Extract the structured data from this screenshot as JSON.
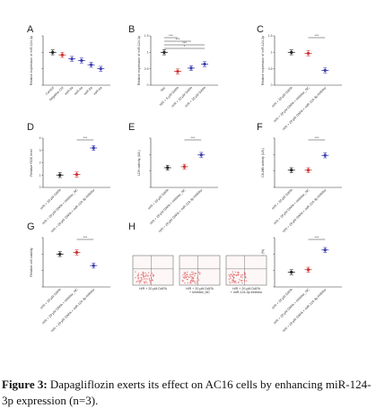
{
  "caption": {
    "label": "Figure 3:",
    "text": "Dapagliflozin exerts its effect on AC16 cells by enhancing miR-124-3p expression (n=3)."
  },
  "panel_g_legend": [
    "H/R + 20 μM DAPA",
    "H/R + 20 μM DAPA + Inhibitor_NC",
    "H/R + 20 μM DAPA + miR-124-3p inhibitor"
  ],
  "chart_data": [
    {
      "panel": "A",
      "type": "scatter",
      "ylabel": "Relative expression of miR-124-3p",
      "categories": [
        "Control",
        "Negative Ctrl",
        "miR-3a",
        "miR-4a",
        "miR-5a",
        "miR-6a"
      ],
      "values": [
        1.0,
        0.92,
        0.8,
        0.75,
        0.62,
        0.5
      ],
      "colors": [
        "#222222",
        "#d03030",
        "#3a3ab0",
        "#3a3ab0",
        "#3a3ab0",
        "#3a3ab0"
      ],
      "ylim": [
        0,
        1.5
      ]
    },
    {
      "panel": "B",
      "type": "scatter",
      "ylabel": "Relative expression of miR-124-3p",
      "categories": [
        "Nor",
        "H/R + 5 μM DAPA",
        "H/R + 10 μM DAPA",
        "H/R + 20 μM DAPA"
      ],
      "values": [
        1.0,
        0.42,
        0.52,
        0.64
      ],
      "colors": [
        "#222222",
        "#d03030",
        "#3a3ab0",
        "#3a3ab0"
      ],
      "ylim": [
        0,
        1.5
      ],
      "yticks": [
        0,
        0.5,
        1.0,
        1.5
      ],
      "significance": [
        "***",
        "***",
        "***",
        "*"
      ]
    },
    {
      "panel": "C",
      "type": "scatter",
      "ylabel": "Relative expression of miR-124-3p",
      "categories": [
        "H/R + 20 μM DAPA",
        "H/R + 20 μM DAPA + inhibitor_NC",
        "H/R + 20 μM DAPA + miR-124-3p inhibitor"
      ],
      "values": [
        1.0,
        0.97,
        0.45
      ],
      "colors": [
        "#222222",
        "#d03030",
        "#3a3ab0"
      ],
      "ylim": [
        0,
        1.5
      ],
      "yticks": [
        0,
        0.5,
        1.0,
        1.5
      ],
      "significance": [
        "***"
      ]
    },
    {
      "panel": "D",
      "type": "scatter",
      "ylabel": "Relative ROS level",
      "categories": [
        "H/R + 20 μM DAPA",
        "H/R + 20 μM DAPA + inhibitor_NC",
        "H/R + 20 μM DAPA + miR-124-3p inhibitor"
      ],
      "values": [
        1.0,
        1.05,
        3.2
      ],
      "colors": [
        "#222222",
        "#d03030",
        "#3a3ab0"
      ],
      "ylim": [
        0,
        4
      ],
      "yticks": [
        0,
        1,
        2,
        3,
        4
      ],
      "significance": [
        "***"
      ]
    },
    {
      "panel": "E",
      "type": "scatter",
      "ylabel": "LDH activity (U/L)",
      "categories": [
        "H/R + 20 μM DAPA",
        "H/R + 20 μM DAPA + inhibitor_NC",
        "H/R + 20 μM DAPA + miR-124-3p inhibitor"
      ],
      "values": [
        20,
        21,
        33
      ],
      "colors": [
        "#222222",
        "#d03030",
        "#3a3ab0"
      ],
      "ylim": [
        0,
        50
      ],
      "significance": [
        "***"
      ]
    },
    {
      "panel": "F",
      "type": "scatter",
      "ylabel": "CK-MB activity (U/L)",
      "categories": [
        "H/R + 20 μM DAPA",
        "H/R + 20 μM DAPA + inhibitor_NC",
        "H/R + 20 μM DAPA + miR-124-3p inhibitor"
      ],
      "values": [
        14,
        14,
        26
      ],
      "colors": [
        "#222222",
        "#d03030",
        "#3a3ab0"
      ],
      "ylim": [
        0,
        40
      ],
      "significance": [
        "***"
      ]
    },
    {
      "panel": "G",
      "type": "scatter",
      "ylabel": "Relative cell viability",
      "categories": [
        "H/R + 20 μM DAPA",
        "H/R + 20 μM DAPA + inhibitor_NC",
        "H/R + 20 μM DAPA + miR-124-3p inhibitor"
      ],
      "values": [
        1.0,
        1.05,
        0.65
      ],
      "colors": [
        "#222222",
        "#d03030",
        "#3a3ab0"
      ],
      "ylim": [
        0,
        1.5
      ],
      "significance": [
        "***"
      ]
    },
    {
      "panel": "H",
      "type": "scatter",
      "ylabel": "Apoptosis rate (%)",
      "categories": [
        "H/R + 20 μM DAPA",
        "H/R + 20 μM DAPA + inhibitor_NC",
        "H/R + 20 μM DAPA + miR-124-3p inhibitor"
      ],
      "values": [
        12,
        14,
        30
      ],
      "colors": [
        "#222222",
        "#d03030",
        "#3a3ab0"
      ],
      "ylim": [
        0,
        40
      ],
      "significance": [
        "***"
      ],
      "flow_labels": [
        [
          "H/R + 20 μM DAPA"
        ],
        [
          "H/R + 20 μM DAPA",
          "+ Inhibitor_NC"
        ],
        [
          "H/R + 20 μM DAPA",
          "+ miR-124-3p inhibitor"
        ]
      ]
    }
  ]
}
